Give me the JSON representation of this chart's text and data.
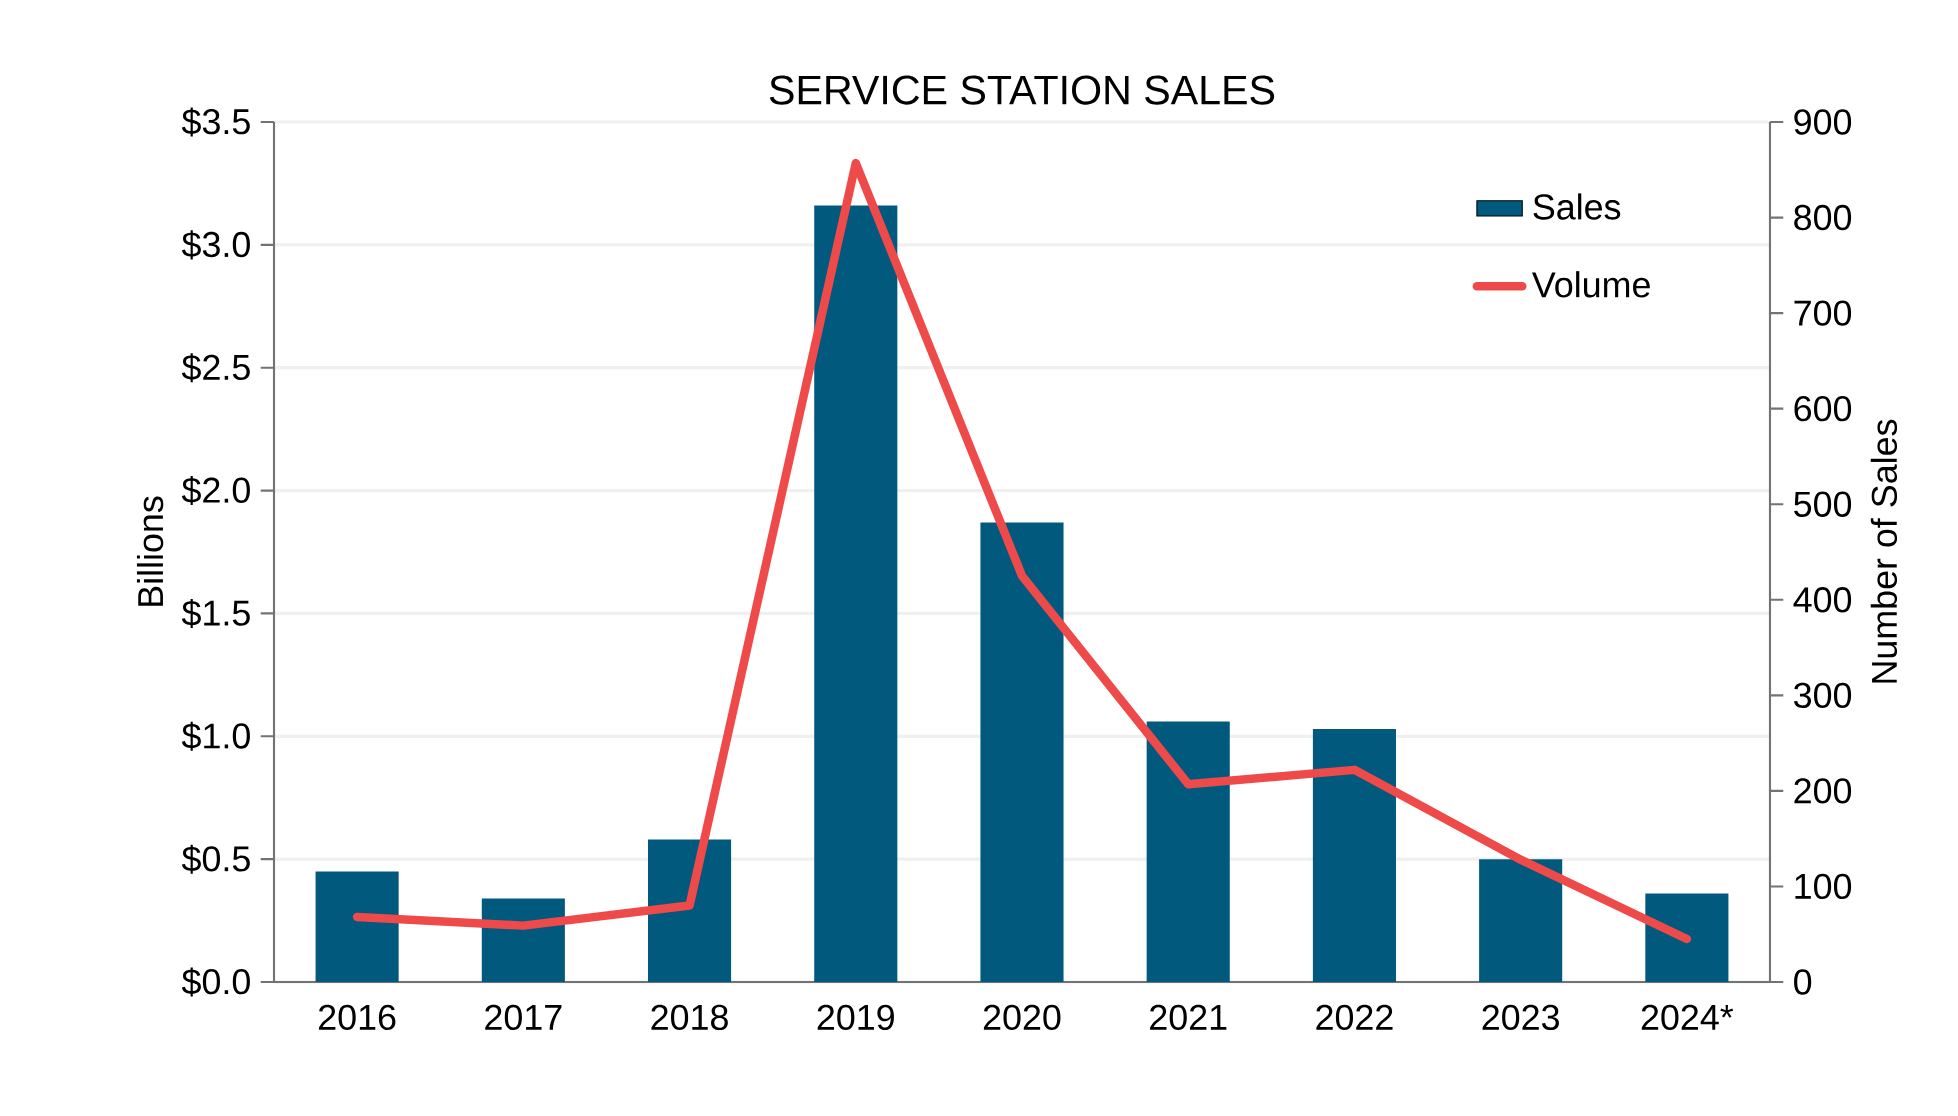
{
  "chart_data": {
    "type": "bar",
    "title": "SERVICE STATION SALES",
    "ylabel": "Billions",
    "y2label": "Number of Sales",
    "categories": [
      "2016",
      "2017",
      "2018",
      "2019",
      "2020",
      "2021",
      "2022",
      "2023",
      "2024*"
    ],
    "series": [
      {
        "name": "Sales",
        "color": "#015a7e",
        "values": [
          0.45,
          0.34,
          0.58,
          3.16,
          1.87,
          1.06,
          1.03,
          0.5,
          0.36
        ]
      },
      {
        "name": "Volume",
        "type": "line",
        "axis": "y2",
        "color": "#ef4a4a",
        "values": [
          68,
          59,
          80,
          857,
          425,
          207,
          222,
          128,
          45
        ]
      }
    ],
    "ylim": [
      0,
      3.5
    ],
    "yticks": [
      {
        "value": 0,
        "label": "$0.0"
      },
      {
        "value": 0.5,
        "label": "$0.5"
      },
      {
        "value": 1,
        "label": "$1.0"
      },
      {
        "value": 1.5,
        "label": "$1.5"
      },
      {
        "value": 2,
        "label": "$2.0"
      },
      {
        "value": 2.5,
        "label": "$2.5"
      },
      {
        "value": 3,
        "label": "$3.0"
      },
      {
        "value": 3.5,
        "label": "$3.5"
      }
    ],
    "y2lim": [
      0,
      900
    ],
    "y2ticks": [
      0,
      100,
      200,
      300,
      400,
      500,
      600,
      700,
      800,
      900
    ],
    "grid": "y",
    "legend": "top right",
    "marker": "none",
    "line_style": "solid"
  }
}
